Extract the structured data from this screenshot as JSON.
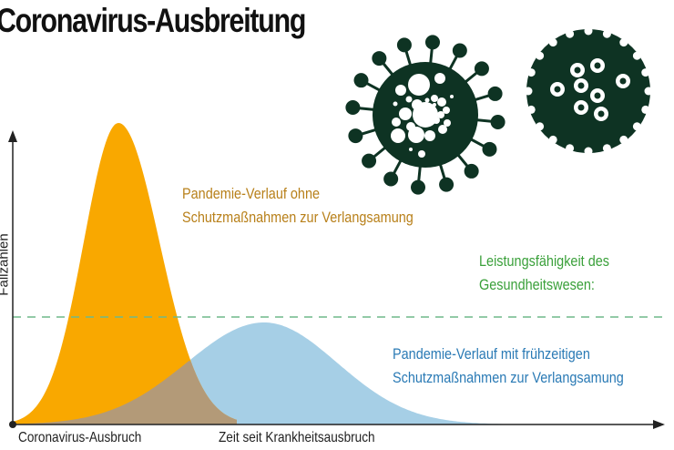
{
  "title": "Coronavirus-Ausbreitung",
  "chart_data": {
    "type": "area",
    "title": "Coronavirus-Ausbreitung",
    "ylabel": "Fallzahlen",
    "xlabel": "Zeit seit Krankheitsausbruch",
    "x_origin_label": "Coronavirus-Ausbruch",
    "series": [
      {
        "name": "Pandemie-Verlauf ohne Schutzmaßnahmen zur Verlangsamung",
        "line1": "Pandemie-Verlauf ohne",
        "line2": "Schutzmaßnahmen zur Verlangsamung",
        "color": "#f9a800",
        "shape": "high narrow early peak"
      },
      {
        "name": "Pandemie-Verlauf mit frühzeitigen Schutzmaßnahmen zur Verlangsamung",
        "line1": "Pandemie-Verlauf mit frühzeitigen",
        "line2": "Schutzmaßnahmen zur Verlangsamung",
        "color": "#a6cfe6",
        "shape": "low broad later peak"
      }
    ],
    "threshold": {
      "line1": "Leistungsfähigkeit des",
      "line2": "Gesundheitswesen:",
      "color": "#3aa03a",
      "style": "dashed"
    },
    "overlap_color": "#b39a78",
    "grid": false
  },
  "icons": [
    "virus-icon",
    "coronavirus-icon"
  ],
  "colors": {
    "virus": "#0e3323",
    "orange_text": "#b8801a",
    "blue_text": "#2a7ab5",
    "green_text": "#3aa03a"
  }
}
